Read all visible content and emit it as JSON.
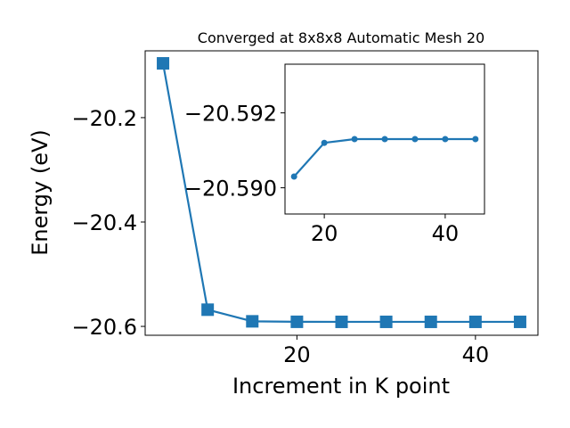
{
  "chart_data": [
    {
      "type": "line",
      "title": "Converged at 8x8x8 Automatic Mesh 20",
      "x_label": "Increment in K point",
      "y_label": "Energy (eV)",
      "x": [
        5,
        10,
        15,
        20,
        25,
        30,
        35,
        40,
        45
      ],
      "series": [
        {
          "color": "#1f77b4",
          "marker": "square",
          "values": [
            -20.096,
            -20.568,
            -20.5903,
            -20.5912,
            -20.5913,
            -20.5913,
            -20.5913,
            -20.5913,
            -20.5913
          ]
        }
      ],
      "xlim": [
        3,
        47
      ],
      "ylim": [
        -20.617,
        -20.072
      ],
      "xticks": [
        20,
        40
      ],
      "yticks": [
        {
          "value": -20.2,
          "label": "−20.2"
        },
        {
          "value": -20.4,
          "label": "−20.4"
        },
        {
          "value": -20.6,
          "label": "−20.6"
        }
      ]
    },
    {
      "type": "line",
      "x": [
        15,
        20,
        25,
        30,
        35,
        40,
        45
      ],
      "series": [
        {
          "color": "#1f77b4",
          "marker": "circle",
          "values": [
            -20.5903,
            -20.5912,
            -20.5913,
            -20.5913,
            -20.5913,
            -20.5913,
            -20.5913
          ]
        }
      ],
      "xlim": [
        13.5,
        46.5
      ],
      "ylim": [
        -20.5893,
        -20.5933
      ],
      "xticks": [
        20,
        40
      ],
      "yticks": [
        {
          "value": -20.592,
          "label": "−20.592"
        },
        {
          "value": -20.59,
          "label": "−20.590"
        }
      ]
    }
  ]
}
